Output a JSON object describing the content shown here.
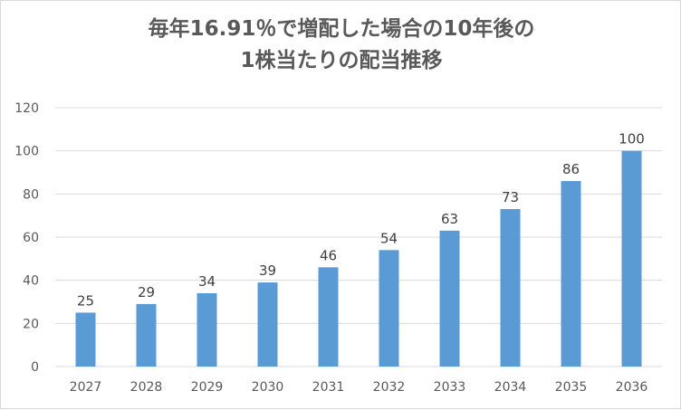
{
  "chart_data": {
    "type": "bar",
    "title_lines": [
      "毎年16.91％で増配した場合の10年後の",
      "1株当たりの配当推移"
    ],
    "categories": [
      "2027",
      "2028",
      "2029",
      "2030",
      "2031",
      "2032",
      "2033",
      "2034",
      "2035",
      "2036"
    ],
    "values": [
      25,
      29,
      34,
      39,
      46,
      54,
      63,
      73,
      86,
      100
    ],
    "data_labels": [
      "25",
      "29",
      "34",
      "39",
      "46",
      "54",
      "63",
      "73",
      "86",
      "100"
    ],
    "y_ticks": [
      "0",
      "20",
      "40",
      "60",
      "80",
      "100",
      "120"
    ],
    "ylim": [
      0,
      120
    ],
    "xlabel": "",
    "ylabel": "",
    "grid": true,
    "legend": false,
    "colors": {
      "bar": "#5b9bd5",
      "grid": "#d9d9d9",
      "text": "#595959"
    }
  }
}
